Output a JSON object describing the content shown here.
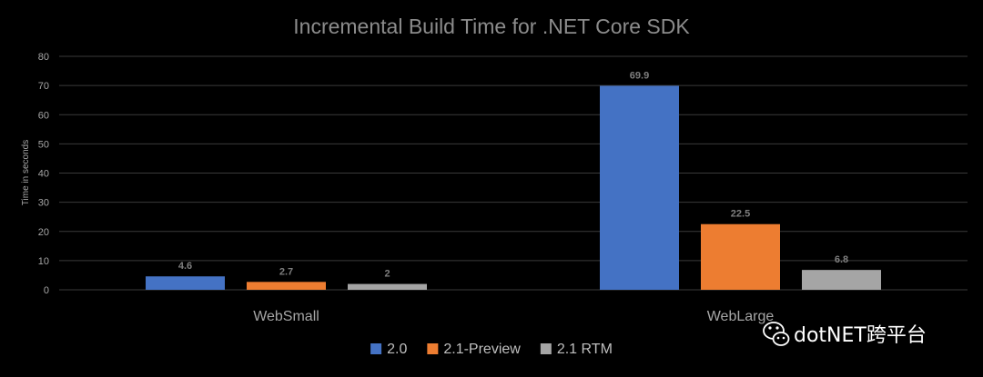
{
  "chart_data": {
    "type": "bar",
    "title": "Incremental Build Time for .NET Core SDK",
    "ylabel": "Time in seconds",
    "xlabel": "",
    "ylim": [
      0,
      80
    ],
    "yticks": [
      0,
      10,
      20,
      30,
      40,
      50,
      60,
      70,
      80
    ],
    "grid": true,
    "legend_position": "bottom",
    "categories": [
      "WebSmall",
      "WebLarge"
    ],
    "series": [
      {
        "name": "2.0",
        "color": "#4472c4",
        "values": [
          4.6,
          69.9
        ],
        "labels": [
          "4.6",
          "69.9"
        ]
      },
      {
        "name": "2.1-Preview",
        "color": "#ed7d31",
        "values": [
          2.7,
          22.5
        ],
        "labels": [
          "2.7",
          "22.5"
        ]
      },
      {
        "name": "2.1 RTM",
        "color": "#a5a5a5",
        "values": [
          2,
          6.8
        ],
        "labels": [
          "2",
          "6.8"
        ]
      }
    ]
  },
  "watermark": {
    "text": "dotNET跨平台",
    "icon": "wechat-icon"
  }
}
